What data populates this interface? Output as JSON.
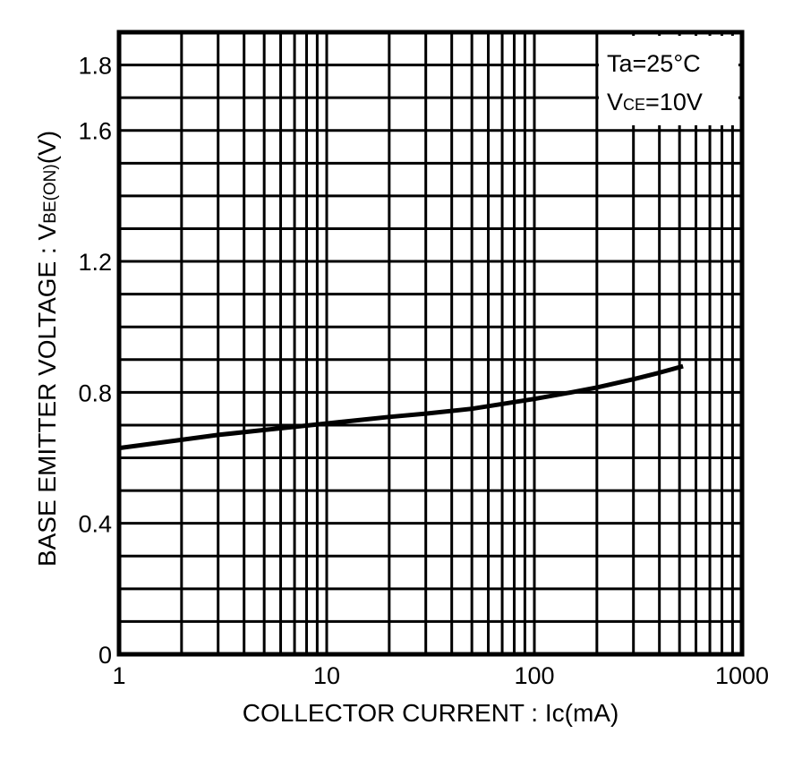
{
  "chart_data": {
    "type": "line",
    "xscale": "log",
    "xlim": [
      1,
      1000
    ],
    "ylim": [
      0,
      1.9
    ],
    "grid": true,
    "xticks": [
      {
        "value": 1,
        "label": "1"
      },
      {
        "value": 10,
        "label": "10"
      },
      {
        "value": 100,
        "label": "100"
      },
      {
        "value": 1000,
        "label": "1000"
      }
    ],
    "yticks": [
      {
        "value": 0,
        "label": "0"
      },
      {
        "value": 0.4,
        "label": "0.4"
      },
      {
        "value": 0.8,
        "label": "0.8"
      },
      {
        "value": 1.2,
        "label": "1.2"
      },
      {
        "value": 1.6,
        "label": "1.6"
      },
      {
        "value": 1.8,
        "label": "1.8"
      }
    ],
    "ygrid_step": 0.1,
    "xlabel": "COLLECTOR  CURRENT : Ic(mA)",
    "ylabel": {
      "main": "BASE  EMITTER  VOLTAGE : V",
      "sub": "BE(ON)",
      "unit": "(V)"
    },
    "conditions": {
      "line1": "Ta=25°C",
      "line2_main": "V",
      "line2_sub": "CE",
      "line2_rest": "=10V",
      "position": "top-right"
    },
    "series": [
      {
        "x": [
          1,
          2,
          3,
          5,
          10,
          20,
          30,
          50,
          100,
          150,
          200,
          300,
          400,
          520
        ],
        "y": [
          0.63,
          0.655,
          0.67,
          0.685,
          0.705,
          0.725,
          0.735,
          0.75,
          0.78,
          0.8,
          0.815,
          0.84,
          0.86,
          0.88
        ]
      }
    ]
  }
}
